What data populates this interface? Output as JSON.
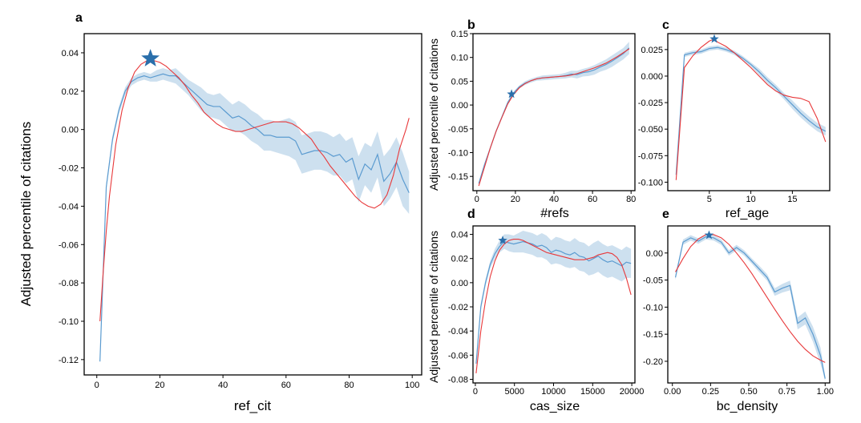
{
  "colors": {
    "band": "#bcd6ea",
    "mean": "#5b9bd0",
    "fit": "#e8383a",
    "star": "#2a6fab",
    "frame": "#000000"
  },
  "chart_data": [
    {
      "panel": "a",
      "type": "line",
      "xlabel": "ref_cit",
      "ylabel": "Adjusted percentile of citations",
      "xlim": [
        -4,
        103
      ],
      "ylim": [
        -0.128,
        0.05
      ],
      "xticks": [
        0,
        20,
        40,
        60,
        80,
        100
      ],
      "yticks": [
        0.04,
        0.02,
        0.0,
        -0.02,
        -0.04,
        -0.06,
        -0.08,
        -0.1,
        -0.12
      ],
      "ytick_labels": [
        "0.04",
        "0.02",
        "0.00",
        "-0.02",
        "-0.04",
        "-0.06",
        "-0.08",
        "-0.10",
        "-0.12"
      ],
      "star": [
        17,
        0.037
      ],
      "mean": {
        "x": [
          1,
          3,
          5,
          7,
          9,
          11,
          13,
          15,
          17,
          19,
          21,
          23,
          25,
          27,
          29,
          31,
          33,
          35,
          37,
          39,
          41,
          43,
          45,
          47,
          49,
          51,
          53,
          55,
          57,
          59,
          61,
          63,
          65,
          67,
          69,
          71,
          73,
          75,
          77,
          79,
          81,
          83,
          85,
          87,
          89,
          91,
          93,
          95,
          97,
          99
        ],
        "y": [
          -0.121,
          -0.03,
          -0.005,
          0.01,
          0.02,
          0.025,
          0.027,
          0.028,
          0.027,
          0.028,
          0.029,
          0.028,
          0.028,
          0.025,
          0.022,
          0.019,
          0.016,
          0.013,
          0.012,
          0.012,
          0.009,
          0.006,
          0.007,
          0.005,
          0.002,
          0.0,
          -0.003,
          -0.003,
          -0.004,
          -0.004,
          -0.004,
          -0.006,
          -0.013,
          -0.012,
          -0.011,
          -0.011,
          -0.012,
          -0.014,
          -0.013,
          -0.017,
          -0.015,
          -0.026,
          -0.018,
          -0.021,
          -0.013,
          -0.027,
          -0.023,
          -0.017,
          -0.026,
          -0.033
        ]
      },
      "band": {
        "lower": [
          -0.121,
          -0.032,
          -0.007,
          0.008,
          0.018,
          0.023,
          0.025,
          0.026,
          0.025,
          0.025,
          0.026,
          0.025,
          0.024,
          0.021,
          0.018,
          0.014,
          0.01,
          0.007,
          0.006,
          0.005,
          0.002,
          -0.001,
          -0.001,
          -0.003,
          -0.006,
          -0.008,
          -0.011,
          -0.011,
          -0.012,
          -0.013,
          -0.014,
          -0.016,
          -0.023,
          -0.022,
          -0.021,
          -0.021,
          -0.022,
          -0.024,
          -0.024,
          -0.028,
          -0.026,
          -0.038,
          -0.029,
          -0.033,
          -0.025,
          -0.04,
          -0.036,
          -0.03,
          -0.04,
          -0.044
        ],
        "upper": [
          -0.121,
          -0.028,
          -0.003,
          0.012,
          0.022,
          0.027,
          0.029,
          0.03,
          0.029,
          0.031,
          0.032,
          0.031,
          0.032,
          0.029,
          0.026,
          0.024,
          0.022,
          0.019,
          0.018,
          0.019,
          0.016,
          0.013,
          0.015,
          0.013,
          0.01,
          0.008,
          0.005,
          0.005,
          0.004,
          0.005,
          0.006,
          0.004,
          -0.003,
          -0.002,
          -0.001,
          -0.001,
          -0.002,
          -0.004,
          -0.002,
          -0.006,
          -0.004,
          -0.014,
          -0.007,
          -0.009,
          -0.001,
          -0.014,
          -0.01,
          -0.004,
          -0.012,
          -0.022
        ]
      },
      "fit": {
        "x": [
          1,
          2,
          3,
          4,
          6,
          8,
          10,
          12,
          14,
          16,
          18,
          20,
          22,
          24,
          26,
          28,
          30,
          32,
          34,
          36,
          38,
          40,
          42,
          44,
          46,
          48,
          50,
          52,
          54,
          56,
          58,
          60,
          62,
          64,
          66,
          68,
          70,
          72,
          74,
          76,
          78,
          80,
          82,
          84,
          86,
          88,
          90,
          92,
          94,
          96,
          98,
          99
        ],
        "y": [
          -0.1,
          -0.075,
          -0.053,
          -0.035,
          -0.008,
          0.01,
          0.022,
          0.03,
          0.034,
          0.036,
          0.036,
          0.035,
          0.033,
          0.03,
          0.027,
          0.023,
          0.018,
          0.014,
          0.009,
          0.006,
          0.003,
          0.001,
          0.0,
          -0.001,
          -0.001,
          0.0,
          0.001,
          0.002,
          0.003,
          0.004,
          0.004,
          0.004,
          0.003,
          0.001,
          -0.002,
          -0.005,
          -0.01,
          -0.014,
          -0.019,
          -0.023,
          -0.027,
          -0.031,
          -0.035,
          -0.038,
          -0.04,
          -0.041,
          -0.039,
          -0.034,
          -0.024,
          -0.01,
          0.0,
          0.006
        ]
      }
    },
    {
      "panel": "b",
      "type": "line",
      "xlabel": "#refs",
      "ylabel": "Adjusted percentile of citations",
      "xlim": [
        -2,
        82
      ],
      "ylim": [
        -0.18,
        0.15
      ],
      "xticks": [
        0,
        20,
        40,
        60,
        80
      ],
      "yticks": [
        0.15,
        0.1,
        0.05,
        0.0,
        -0.05,
        -0.1,
        -0.15
      ],
      "ytick_labels": [
        "0.15",
        "0.10",
        "0.05",
        "0.00",
        "-0.05",
        "-0.10",
        "-0.15"
      ],
      "star": [
        18,
        0.023
      ],
      "mean": {
        "x": [
          1,
          4,
          7,
          10,
          13,
          16,
          19,
          22,
          25,
          28,
          31,
          34,
          37,
          40,
          43,
          46,
          49,
          52,
          55,
          58,
          61,
          64,
          67,
          70,
          73,
          76,
          79
        ],
        "y": [
          -0.165,
          -0.125,
          -0.09,
          -0.055,
          -0.025,
          0.005,
          0.025,
          0.038,
          0.046,
          0.051,
          0.055,
          0.057,
          0.058,
          0.059,
          0.06,
          0.062,
          0.065,
          0.064,
          0.068,
          0.07,
          0.074,
          0.08,
          0.085,
          0.092,
          0.1,
          0.108,
          0.12
        ]
      },
      "band": {
        "lower": [
          -0.167,
          -0.128,
          -0.093,
          -0.058,
          -0.028,
          0.002,
          0.022,
          0.035,
          0.042,
          0.047,
          0.051,
          0.052,
          0.053,
          0.054,
          0.055,
          0.056,
          0.058,
          0.056,
          0.06,
          0.061,
          0.064,
          0.07,
          0.074,
          0.08,
          0.088,
          0.096,
          0.107
        ],
        "upper": [
          -0.163,
          -0.122,
          -0.087,
          -0.052,
          -0.022,
          0.008,
          0.028,
          0.041,
          0.05,
          0.055,
          0.059,
          0.062,
          0.063,
          0.064,
          0.065,
          0.068,
          0.072,
          0.072,
          0.076,
          0.079,
          0.084,
          0.09,
          0.096,
          0.104,
          0.112,
          0.12,
          0.133
        ]
      },
      "fit": {
        "x": [
          1,
          4,
          7,
          10,
          13,
          16,
          19,
          22,
          25,
          28,
          31,
          34,
          37,
          40,
          43,
          46,
          49,
          52,
          55,
          58,
          61,
          64,
          67,
          70,
          73,
          76,
          79
        ],
        "y": [
          -0.17,
          -0.13,
          -0.09,
          -0.055,
          -0.026,
          0.002,
          0.022,
          0.036,
          0.045,
          0.051,
          0.055,
          0.057,
          0.058,
          0.059,
          0.06,
          0.061,
          0.063,
          0.066,
          0.07,
          0.074,
          0.078,
          0.083,
          0.088,
          0.095,
          0.102,
          0.11,
          0.118
        ]
      }
    },
    {
      "panel": "c",
      "type": "line",
      "xlabel": "ref_age",
      "ylabel": "",
      "xlim": [
        0,
        19.5
      ],
      "ylim": [
        -0.108,
        0.04
      ],
      "xticks": [
        5,
        10,
        15
      ],
      "yticks": [
        0.025,
        0.0,
        -0.025,
        -0.05,
        -0.075,
        -0.1
      ],
      "ytick_labels": [
        "0.025",
        "0.000",
        "-0.025",
        "-0.050",
        "-0.075",
        "-0.100"
      ],
      "star": [
        5.6,
        0.035
      ],
      "mean": {
        "x": [
          1,
          2,
          3,
          4,
          5,
          6,
          7,
          8,
          9,
          10,
          11,
          12,
          13,
          14,
          15,
          16,
          17,
          18,
          19
        ],
        "y": [
          -0.093,
          0.02,
          0.022,
          0.023,
          0.026,
          0.027,
          0.025,
          0.022,
          0.017,
          0.011,
          0.004,
          -0.004,
          -0.011,
          -0.019,
          -0.027,
          -0.035,
          -0.042,
          -0.048,
          -0.052
        ]
      },
      "band": {
        "lower": [
          -0.096,
          0.018,
          0.02,
          0.021,
          0.024,
          0.025,
          0.023,
          0.02,
          0.015,
          0.009,
          0.001,
          -0.007,
          -0.014,
          -0.022,
          -0.031,
          -0.039,
          -0.046,
          -0.052,
          -0.056
        ],
        "upper": [
          -0.09,
          0.022,
          0.024,
          0.025,
          0.028,
          0.029,
          0.027,
          0.024,
          0.019,
          0.013,
          0.007,
          -0.001,
          -0.008,
          -0.016,
          -0.023,
          -0.031,
          -0.038,
          -0.044,
          -0.048
        ]
      },
      "fit": {
        "x": [
          1,
          2,
          3,
          4,
          5,
          5.6,
          6,
          7,
          8,
          9,
          10,
          11,
          12,
          13,
          14,
          15,
          16,
          17,
          18,
          19
        ],
        "y": [
          -0.098,
          0.008,
          0.019,
          0.027,
          0.033,
          0.035,
          0.032,
          0.028,
          0.022,
          0.015,
          0.008,
          0.0,
          -0.008,
          -0.014,
          -0.018,
          -0.02,
          -0.021,
          -0.024,
          -0.04,
          -0.062
        ]
      }
    },
    {
      "panel": "d",
      "type": "line",
      "xlabel": "cas_size",
      "ylabel": "Adjusted percentile of citations",
      "xlim": [
        -300,
        20400
      ],
      "ylim": [
        -0.083,
        0.047
      ],
      "xticks": [
        0,
        5000,
        10000,
        15000,
        20000
      ],
      "yticks": [
        0.04,
        0.02,
        0.0,
        -0.02,
        -0.04,
        -0.06,
        -0.08
      ],
      "ytick_labels": [
        "0.04",
        "0.02",
        "0.00",
        "-0.02",
        "-0.04",
        "-0.06",
        "-0.08"
      ],
      "star": [
        3500,
        0.035
      ],
      "mean": {
        "x": [
          100,
          700,
          1300,
          1900,
          2500,
          3100,
          3700,
          4300,
          4900,
          5500,
          6100,
          6700,
          7300,
          7900,
          8500,
          9100,
          9700,
          10300,
          10900,
          11500,
          12100,
          12700,
          13300,
          13900,
          14500,
          15100,
          15700,
          16300,
          16900,
          17500,
          18100,
          18700,
          19300,
          19900
        ],
        "y": [
          -0.067,
          -0.02,
          0.0,
          0.015,
          0.024,
          0.03,
          0.034,
          0.033,
          0.032,
          0.033,
          0.034,
          0.033,
          0.032,
          0.03,
          0.031,
          0.029,
          0.025,
          0.027,
          0.026,
          0.024,
          0.023,
          0.025,
          0.022,
          0.021,
          0.018,
          0.02,
          0.022,
          0.019,
          0.017,
          0.018,
          0.016,
          0.014,
          0.017,
          0.016
        ]
      },
      "band": {
        "lower": [
          -0.07,
          -0.023,
          -0.003,
          0.012,
          0.02,
          0.025,
          0.028,
          0.026,
          0.025,
          0.025,
          0.025,
          0.024,
          0.023,
          0.021,
          0.021,
          0.019,
          0.015,
          0.016,
          0.015,
          0.013,
          0.012,
          0.013,
          0.01,
          0.009,
          0.006,
          0.007,
          0.009,
          0.006,
          0.004,
          0.005,
          0.003,
          0.001,
          0.004,
          0.004
        ],
        "upper": [
          -0.064,
          -0.017,
          0.003,
          0.018,
          0.028,
          0.035,
          0.04,
          0.04,
          0.039,
          0.041,
          0.043,
          0.042,
          0.041,
          0.039,
          0.041,
          0.039,
          0.035,
          0.038,
          0.037,
          0.035,
          0.034,
          0.037,
          0.034,
          0.033,
          0.03,
          0.033,
          0.035,
          0.032,
          0.03,
          0.031,
          0.029,
          0.027,
          0.03,
          0.028
        ]
      },
      "fit": {
        "x": [
          100,
          700,
          1300,
          1900,
          2500,
          3100,
          3700,
          4300,
          4900,
          5500,
          6100,
          6700,
          7300,
          7900,
          8500,
          9100,
          9700,
          10300,
          10900,
          11500,
          12100,
          12700,
          13300,
          13900,
          14500,
          15100,
          15700,
          16300,
          16900,
          17500,
          18100,
          18700,
          19300,
          19900
        ],
        "y": [
          -0.075,
          -0.04,
          -0.015,
          0.005,
          0.018,
          0.027,
          0.032,
          0.035,
          0.036,
          0.036,
          0.035,
          0.033,
          0.031,
          0.029,
          0.027,
          0.025,
          0.024,
          0.023,
          0.022,
          0.021,
          0.02,
          0.019,
          0.019,
          0.019,
          0.02,
          0.021,
          0.023,
          0.024,
          0.025,
          0.024,
          0.021,
          0.015,
          0.004,
          -0.01
        ]
      }
    },
    {
      "panel": "e",
      "type": "line",
      "xlabel": "bc_density",
      "ylabel": "",
      "xlim": [
        -0.03,
        1.03
      ],
      "ylim": [
        -0.24,
        0.05
      ],
      "xticks": [
        0.0,
        0.25,
        0.5,
        0.75,
        1.0
      ],
      "xtick_labels": [
        "0.00",
        "0.25",
        "0.50",
        "0.75",
        "1.00"
      ],
      "yticks": [
        0.0,
        -0.05,
        -0.1,
        -0.15,
        -0.2
      ],
      "ytick_labels": [
        "0.00",
        "-0.05",
        "-0.10",
        "-0.15",
        "-0.20"
      ],
      "star": [
        0.24,
        0.033
      ],
      "mean": {
        "x": [
          0.02,
          0.07,
          0.12,
          0.17,
          0.22,
          0.27,
          0.32,
          0.37,
          0.42,
          0.47,
          0.52,
          0.57,
          0.62,
          0.67,
          0.72,
          0.77,
          0.82,
          0.87,
          0.92,
          0.97,
          1.0
        ],
        "y": [
          -0.045,
          0.02,
          0.028,
          0.022,
          0.03,
          0.028,
          0.02,
          0.0,
          0.01,
          0.0,
          -0.015,
          -0.03,
          -0.045,
          -0.072,
          -0.065,
          -0.06,
          -0.13,
          -0.12,
          -0.15,
          -0.19,
          -0.232
        ]
      },
      "band": {
        "lower": [
          -0.05,
          0.015,
          0.023,
          0.017,
          0.025,
          0.023,
          0.015,
          -0.005,
          0.005,
          -0.005,
          -0.02,
          -0.036,
          -0.051,
          -0.079,
          -0.073,
          -0.069,
          -0.141,
          -0.132,
          -0.164,
          -0.205,
          -0.237
        ],
        "upper": [
          -0.04,
          0.025,
          0.033,
          0.027,
          0.035,
          0.033,
          0.025,
          0.005,
          0.015,
          0.005,
          -0.01,
          -0.024,
          -0.039,
          -0.065,
          -0.057,
          -0.051,
          -0.119,
          -0.108,
          -0.136,
          -0.175,
          -0.227
        ]
      },
      "fit": {
        "x": [
          0.02,
          0.07,
          0.12,
          0.17,
          0.22,
          0.27,
          0.32,
          0.37,
          0.42,
          0.47,
          0.52,
          0.57,
          0.62,
          0.67,
          0.72,
          0.77,
          0.82,
          0.87,
          0.92,
          0.97,
          1.0
        ],
        "y": [
          -0.035,
          -0.01,
          0.012,
          0.026,
          0.034,
          0.034,
          0.028,
          0.016,
          0.0,
          -0.018,
          -0.038,
          -0.06,
          -0.082,
          -0.104,
          -0.125,
          -0.145,
          -0.163,
          -0.178,
          -0.19,
          -0.198,
          -0.202
        ]
      }
    }
  ]
}
